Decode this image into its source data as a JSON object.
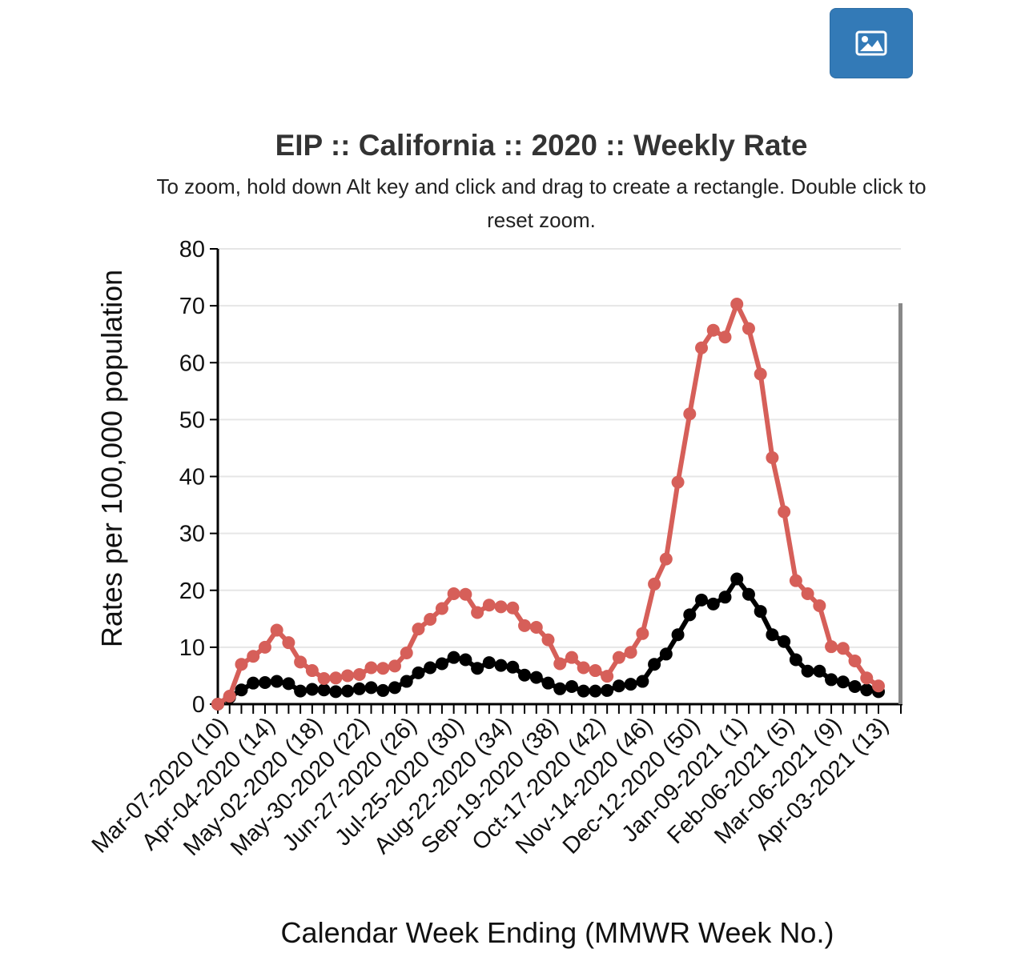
{
  "toolbar": {
    "image_button_icon": "image-icon"
  },
  "chart_data": {
    "type": "line",
    "title": "EIP :: California :: 2020 :: Weekly Rate",
    "subtitle_line1": "To zoom, hold down Alt key and click and drag to create a rectangle. Double click to",
    "subtitle_line2": "reset zoom.",
    "xlabel": "Calendar Week Ending (MMWR Week No.)",
    "ylabel": "Rates per 100,000 population",
    "ylim": [
      0,
      80
    ],
    "yticks": [
      0,
      10,
      20,
      30,
      40,
      50,
      60,
      70,
      80
    ],
    "grid": true,
    "x_weeks": [
      10,
      11,
      12,
      13,
      14,
      15,
      16,
      17,
      18,
      19,
      20,
      21,
      22,
      23,
      24,
      25,
      26,
      27,
      28,
      29,
      30,
      31,
      32,
      33,
      34,
      35,
      36,
      37,
      38,
      39,
      40,
      41,
      42,
      43,
      44,
      45,
      46,
      47,
      48,
      49,
      50,
      51,
      52,
      53,
      1,
      2,
      3,
      4,
      5,
      6,
      7,
      8,
      9,
      10,
      11,
      12,
      13
    ],
    "xtick_labels": [
      "Mar-07-2020 (10)",
      "Apr-04-2020 (14)",
      "May-02-2020 (18)",
      "May-30-2020 (22)",
      "Jun-27-2020 (26)",
      "Jul-25-2020 (30)",
      "Aug-22-2020 (34)",
      "Sep-19-2020 (38)",
      "Oct-17-2020 (42)",
      "Nov-14-2020 (46)",
      "Dec-12-2020 (50)",
      "Jan-09-2021 (1)",
      "Feb-06-2021 (5)",
      "Mar-06-2021 (9)",
      "Apr-03-2021 (13)"
    ],
    "xtick_every": 4,
    "series": [
      {
        "color": "#d65f59",
        "values": [
          0,
          1.4,
          7,
          8.4,
          10,
          13,
          10.8,
          7.4,
          5.9,
          4.5,
          4.6,
          5,
          5.2,
          6.4,
          6.3,
          6.7,
          9,
          13.2,
          14.9,
          16.8,
          19.4,
          19.3,
          16.1,
          17.4,
          17.1,
          16.9,
          13.8,
          13.5,
          11.3,
          7.1,
          8.2,
          6.4,
          5.9,
          4.9,
          8.2,
          9.1,
          12.4,
          21.1,
          25.5,
          39,
          51,
          62.6,
          65.7,
          64.5,
          70.3,
          66,
          58,
          43.3,
          33.8,
          21.7,
          19.4,
          17.3,
          10.1,
          9.8,
          7.6,
          4.6,
          3.2
        ]
      },
      {
        "color": "#000000",
        "values": [
          0,
          1.2,
          2.5,
          3.7,
          3.8,
          4.0,
          3.6,
          2.3,
          2.6,
          2.5,
          2.2,
          2.3,
          2.7,
          2.9,
          2.4,
          2.9,
          4.0,
          5.5,
          6.4,
          7.1,
          8.2,
          7.8,
          6.3,
          7.3,
          6.8,
          6.5,
          5.1,
          4.7,
          3.7,
          2.7,
          3.1,
          2.3,
          2.3,
          2.4,
          3.2,
          3.5,
          4.0,
          7.0,
          8.8,
          12.2,
          15.7,
          18.3,
          17.6,
          18.8,
          22.0,
          19.3,
          16.3,
          12.2,
          11.0,
          7.8,
          5.8,
          5.8,
          4.3,
          3.9,
          3.1,
          2.5,
          2.2
        ]
      }
    ]
  }
}
